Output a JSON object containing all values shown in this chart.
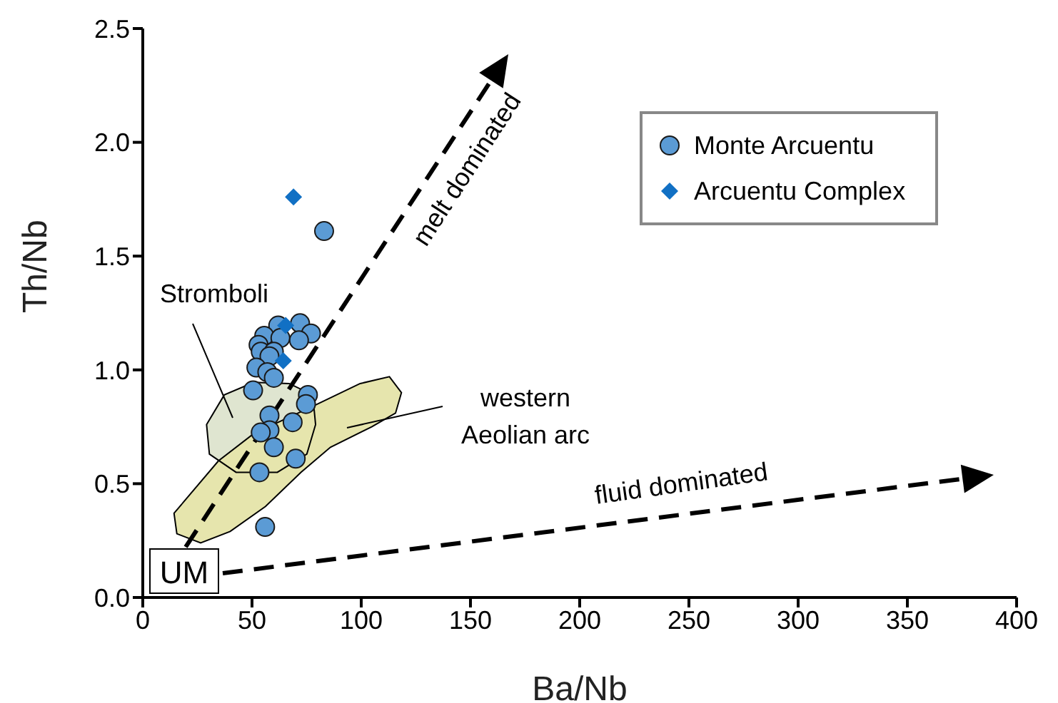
{
  "chart_data": {
    "type": "scatter",
    "xlabel": "Ba/Nb",
    "ylabel": "Th/Nb",
    "xlim": [
      0,
      400
    ],
    "xticks": [
      0,
      50,
      100,
      150,
      200,
      250,
      300,
      350,
      400
    ],
    "ylim": [
      0,
      2.5
    ],
    "yticks": [
      {
        "value": 0,
        "label": "0.0"
      },
      {
        "value": 0.5,
        "label": "0.5"
      },
      {
        "value": 1,
        "label": "1.0"
      },
      {
        "value": 1.5,
        "label": "1.5"
      },
      {
        "value": 2,
        "label": "2.0"
      },
      {
        "value": 2.5,
        "label": "2.5"
      }
    ],
    "legend": "top right",
    "annotations": [
      "melt dominated",
      "fluid dominated",
      "UM"
    ],
    "series": [
      {
        "name": "Stromboli",
        "type": "area",
        "color": "#dfe5d0",
        "x": [
          29.2,
          37.3,
          50.8,
          67,
          77.8,
          79.1,
          75.1,
          61.6,
          42.7,
          30.5
        ],
        "values": [
          0.76,
          0.89,
          0.945,
          0.94,
          0.89,
          0.76,
          0.63,
          0.55,
          0.55,
          0.63
        ]
      },
      {
        "name": "western Aeolian arc",
        "type": "area",
        "color": "#e6e5ad",
        "x": [
          14.3,
          34.6,
          50.8,
          77.8,
          99.5,
          112.9,
          118.4,
          115.7,
          104.8,
          85.9,
          72.4,
          56.2,
          40,
          26.5,
          15.6
        ],
        "values": [
          0.37,
          0.6,
          0.72,
          0.84,
          0.94,
          0.97,
          0.9,
          0.81,
          0.75,
          0.66,
          0.55,
          0.4,
          0.29,
          0.24,
          0.28
        ]
      },
      {
        "name": "Monte Arcuentu",
        "type": "scatter",
        "marker": "circle",
        "color": "#5b9bd5",
        "x": [
          83,
          62,
          72,
          77,
          55.6,
          63,
          71.5,
          53,
          54,
          60,
          58,
          52,
          57,
          60,
          50.5,
          75.6,
          74.7,
          58,
          68.6,
          58,
          54,
          60,
          70,
          53.4,
          56
        ],
        "values": [
          1.61,
          1.195,
          1.205,
          1.16,
          1.15,
          1.14,
          1.13,
          1.11,
          1.08,
          1.08,
          1.06,
          1.01,
          0.99,
          0.965,
          0.91,
          0.89,
          0.85,
          0.8,
          0.77,
          0.735,
          0.725,
          0.66,
          0.61,
          0.55,
          0.31
        ]
      },
      {
        "name": "Arcuentu Complex",
        "type": "scatter",
        "marker": "diamond",
        "color": "#1170c4",
        "x": [
          69,
          65.4,
          64.3
        ],
        "values": [
          1.76,
          1.195,
          1.04
        ]
      }
    ]
  }
}
